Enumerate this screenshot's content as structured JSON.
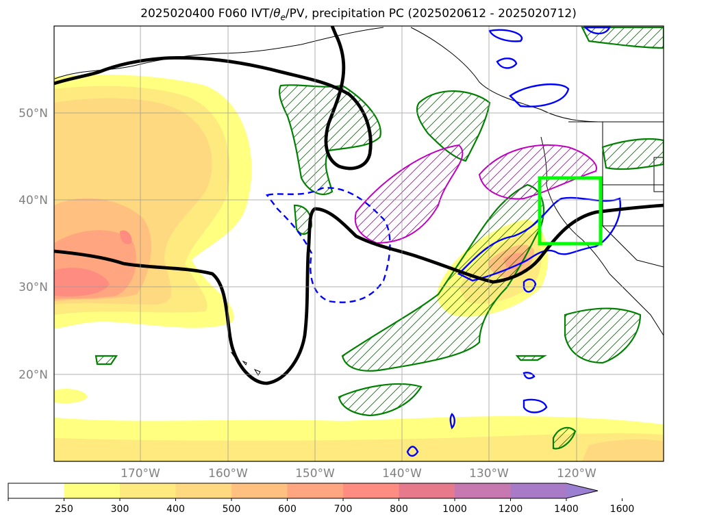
{
  "title": {
    "prefix": "2025020400 F060 IVT/",
    "theta": "θ",
    "theta_sub": "e",
    "suffix": "/PV, precipitation PC (2025020612 - 2025020712)"
  },
  "map": {
    "lat_labels": [
      "50°N",
      "40°N",
      "30°N",
      "20°N"
    ],
    "lon_labels": [
      "170°W",
      "160°W",
      "150°W",
      "140°W",
      "130°W",
      "120°W"
    ],
    "colors": {
      "ivt_shades": [
        "#ffff80",
        "#ffea80",
        "#ffd980",
        "#ffc080",
        "#ffa680",
        "#ff8c80",
        "#e67a8c",
        "#c878b0",
        "#a87ac8"
      ],
      "theta_contour": "#000000",
      "precip_pc": "#008000",
      "blue_contour": "#0000ff",
      "magenta_contour": "#c000c0",
      "focus_box": "#00ff00"
    }
  },
  "colorbar": {
    "ticks": [
      "250",
      "300",
      "400",
      "500",
      "600",
      "700",
      "800",
      "1000",
      "1200",
      "1400",
      "1600"
    ],
    "colors": [
      "#ffffff",
      "#ffff80",
      "#ffea80",
      "#ffd980",
      "#ffc080",
      "#ffa680",
      "#ff8c80",
      "#e67a8c",
      "#c878b0",
      "#a87ac8",
      "#9b7fd0"
    ],
    "extend": "max"
  }
}
